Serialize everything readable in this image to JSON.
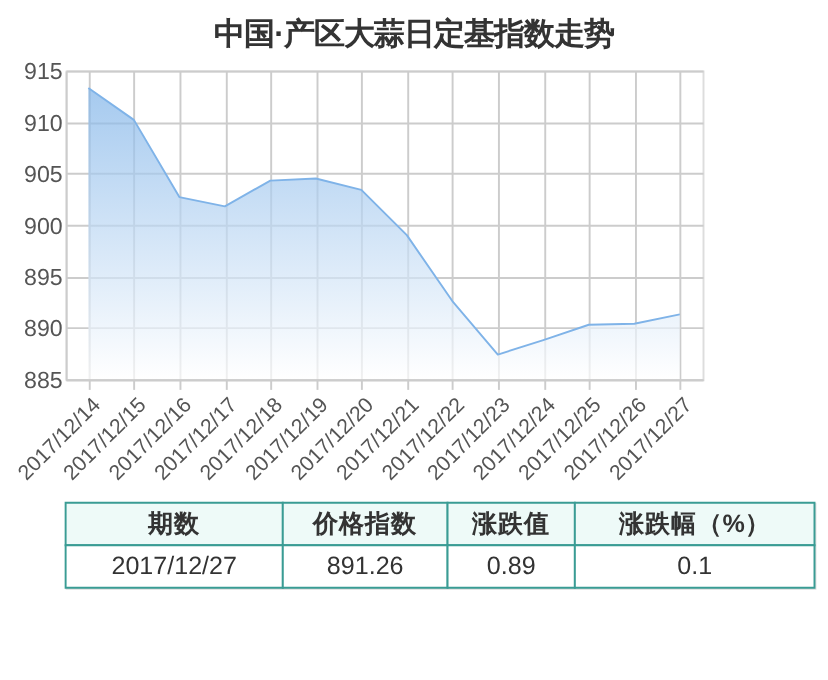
{
  "chart_data": {
    "type": "area",
    "title": "中国·产区大蒜日定基指数走势",
    "categories": [
      "2017/12/14",
      "2017/12/15",
      "2017/12/16",
      "2017/12/17",
      "2017/12/18",
      "2017/12/19",
      "2017/12/20",
      "2017/12/21",
      "2017/12/22",
      "2017/12/23",
      "2017/12/24",
      "2017/12/25",
      "2017/12/26",
      "2017/12/27"
    ],
    "series": [
      {
        "color": "#7fb3e8",
        "values": [
          913.3,
          910.2,
          902.7,
          901.8,
          904.3,
          904.5,
          903.4,
          899.0,
          892.6,
          887.4,
          888.8,
          890.3,
          890.4,
          891.3
        ]
      }
    ],
    "ylim": [
      885,
      915
    ],
    "yticks": [
      885,
      890,
      895,
      900,
      905,
      910,
      915
    ],
    "grid": true,
    "annotations": [
      "期数",
      "价格指数",
      "涨跌值",
      "涨跌幅（%）",
      "2017/12/27",
      "891.26",
      "0.89",
      "0.1"
    ]
  }
}
